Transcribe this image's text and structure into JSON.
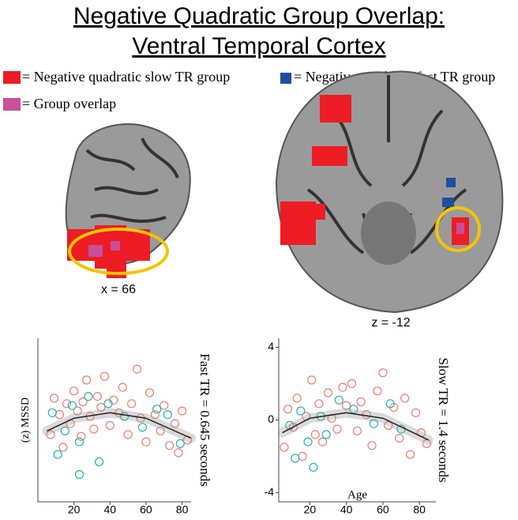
{
  "header": {
    "title_line1": "Negative Quadratic Group Overlap:",
    "title_line2": "Ventral Temporal Cortex"
  },
  "legend": {
    "slow": "= Negative quadratic slow TR group",
    "fast": "= Negative quadratic fast TR group",
    "overlap": "= Group overlap"
  },
  "images": {
    "sagittal_label": "x = 66",
    "axial_label": "z = -12"
  },
  "chart_data": [
    {
      "type": "scatter",
      "y_label": "(z) MSSD",
      "side_label": "Fast TR = 0.645 seconds",
      "xlim": [
        0,
        85
      ],
      "ylim": [
        -4.5,
        4.5
      ],
      "xticks": [
        20,
        40,
        60,
        80
      ],
      "series": [
        {
          "color": "#f07c6c",
          "x": [
            7,
            9,
            12,
            14,
            16,
            18,
            20,
            22,
            24,
            25,
            27,
            29,
            31,
            33,
            35,
            37,
            40,
            42,
            45,
            47,
            50,
            52,
            55,
            57,
            60,
            62,
            65,
            68,
            70,
            73,
            76,
            78,
            80,
            83
          ],
          "values": [
            -0.8,
            1.2,
            0.3,
            -1.5,
            0.9,
            -0.2,
            1.6,
            0.5,
            -0.9,
            1.0,
            2.2,
            0.2,
            -0.5,
            1.3,
            0.7,
            2.4,
            -0.3,
            1.1,
            0.4,
            1.8,
            -0.8,
            0.9,
            2.8,
            0.1,
            -1.2,
            1.5,
            0.3,
            -0.6,
            0.8,
            -1.4,
            -0.2,
            -1.8,
            0.5,
            -1.1
          ]
        },
        {
          "color": "#1fb3b3",
          "x": [
            8,
            11,
            15,
            19,
            23,
            23,
            28,
            34,
            39,
            48,
            58,
            66,
            72,
            79
          ],
          "values": [
            0.4,
            -1.9,
            -0.6,
            0.8,
            -1.2,
            -3.0,
            1.3,
            -2.3,
            0.9,
            0.2,
            -0.4,
            0.6,
            0.3,
            -1.3
          ]
        }
      ],
      "fit": {
        "x": [
          5,
          20,
          40,
          60,
          85
        ],
        "values": [
          -0.6,
          0.1,
          0.4,
          0.1,
          -1.0
        ]
      }
    },
    {
      "type": "scatter",
      "x_label": "Age",
      "side_label": "Slow TR = 1.4 seconds",
      "xlim": [
        3,
        89
      ],
      "ylim": [
        -4.5,
        4.5
      ],
      "xticks": [
        20,
        40,
        60,
        80
      ],
      "yticks": [
        -4,
        0,
        4
      ],
      "series": [
        {
          "color": "#f07c6c",
          "x": [
            6,
            8,
            11,
            13,
            16,
            18,
            21,
            23,
            25,
            27,
            30,
            32,
            35,
            38,
            40,
            43,
            46,
            48,
            51,
            54,
            57,
            60,
            63,
            66,
            69,
            72,
            75,
            78,
            81,
            84
          ],
          "values": [
            -1.5,
            0.6,
            -0.4,
            1.2,
            -2.0,
            0.2,
            2.2,
            -0.8,
            0.9,
            -1.2,
            1.5,
            0.1,
            -0.5,
            1.8,
            0.8,
            2.0,
            -0.6,
            1.0,
            0.3,
            -1.4,
            1.6,
            2.6,
            -0.3,
            0.7,
            -1.0,
            1.2,
            -1.9,
            0.4,
            -0.7,
            -1.3
          ]
        },
        {
          "color": "#1fb3b3",
          "x": [
            9,
            12,
            15,
            19,
            22,
            26,
            29,
            36,
            44,
            55,
            64,
            70
          ],
          "values": [
            -0.3,
            -2.1,
            0.5,
            -1.2,
            -2.6,
            0.2,
            -0.8,
            1.1,
            0.6,
            -0.2,
            0.9,
            -0.5
          ]
        }
      ],
      "fit": {
        "x": [
          5,
          20,
          40,
          60,
          85
        ],
        "values": [
          -0.7,
          0.1,
          0.4,
          0.1,
          -1.1
        ]
      }
    }
  ]
}
